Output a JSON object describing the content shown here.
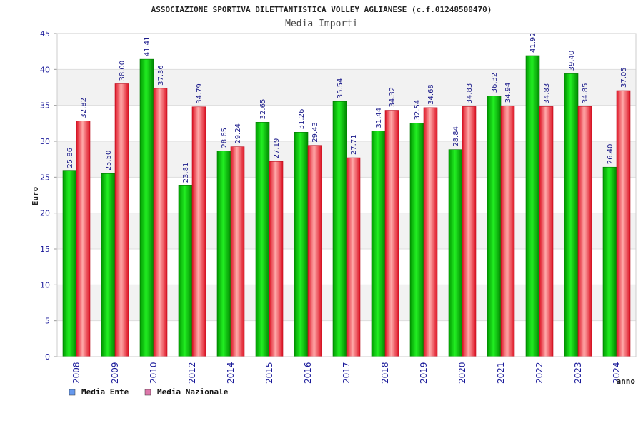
{
  "chart_data": {
    "type": "bar",
    "title": "ASSOCIAZIONE SPORTIVA DILETTANTISTICA VOLLEY AGLIANESE (c.f.01248500470)",
    "subtitle": "Media Importi",
    "xlabel": "anno",
    "ylabel": "Euro",
    "ylim": [
      0,
      45
    ],
    "yticks": [
      0,
      5,
      10,
      15,
      20,
      25,
      30,
      35,
      40,
      45
    ],
    "grid": true,
    "legend_position": "bottom-left",
    "categories": [
      "2008",
      "2009",
      "2010",
      "2012",
      "2014",
      "2015",
      "2016",
      "2017",
      "2018",
      "2019",
      "2020",
      "2021",
      "2022",
      "2023",
      "2024"
    ],
    "series": [
      {
        "name": "Media Ente",
        "legend_color": "#6699ee",
        "bar_color": "#00cc00",
        "values": [
          25.86,
          25.5,
          41.41,
          23.81,
          28.65,
          32.65,
          31.26,
          35.54,
          31.44,
          32.54,
          28.84,
          36.32,
          41.92,
          39.4,
          26.4
        ],
        "labels": [
          "25.86",
          "25.50",
          "41.41",
          "23.81",
          "28.65",
          "32.65",
          "31.26",
          "35.54",
          "31.44",
          "32.54",
          "28.84",
          "36.32",
          "41.92",
          "39.40",
          "26.40"
        ]
      },
      {
        "name": "Media Nazionale",
        "legend_color": "#dd77aa",
        "bar_color": "#ee2233",
        "values": [
          32.82,
          38.0,
          37.36,
          34.79,
          29.24,
          27.19,
          29.43,
          27.71,
          34.32,
          34.68,
          34.83,
          34.94,
          34.83,
          34.85,
          37.05
        ],
        "labels": [
          "32.82",
          "38.00",
          "37.36",
          "34.79",
          "29.24",
          "27.19",
          "29.43",
          "27.71",
          "34.32",
          "34.68",
          "34.83",
          "34.94",
          "34.83",
          "34.85",
          "37.05"
        ]
      }
    ]
  }
}
